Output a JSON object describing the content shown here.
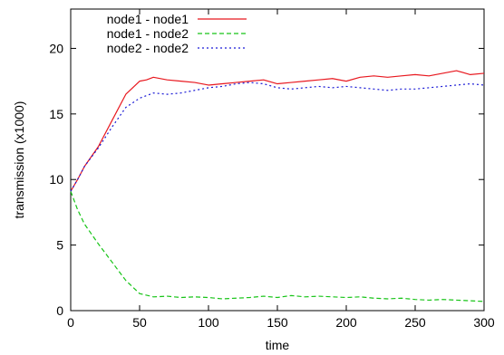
{
  "chart_data": {
    "type": "line",
    "title": "",
    "xlabel": "time",
    "ylabel": "transmission (x1000)",
    "xlim": [
      0,
      300
    ],
    "ylim": [
      0,
      23
    ],
    "x_ticks": [
      "0",
      "50",
      "100",
      "150",
      "200",
      "250",
      "300"
    ],
    "y_ticks": [
      "0",
      "5",
      "10",
      "15",
      "20"
    ],
    "grid": false,
    "legend_position": "top-left",
    "series": [
      {
        "name": "node1 - node1",
        "color": "#e8181f",
        "style": "solid",
        "x": [
          0,
          5,
          10,
          20,
          30,
          40,
          50,
          55,
          60,
          70,
          80,
          90,
          100,
          110,
          120,
          130,
          140,
          150,
          160,
          170,
          180,
          190,
          200,
          210,
          220,
          230,
          240,
          250,
          260,
          270,
          280,
          290,
          300
        ],
        "y": [
          9.1,
          10.0,
          11.0,
          12.5,
          14.5,
          16.5,
          17.5,
          17.6,
          17.8,
          17.6,
          17.5,
          17.4,
          17.2,
          17.3,
          17.4,
          17.5,
          17.6,
          17.3,
          17.4,
          17.5,
          17.6,
          17.7,
          17.5,
          17.8,
          17.9,
          17.8,
          17.9,
          18.0,
          17.9,
          18.1,
          18.3,
          18.0,
          18.1
        ]
      },
      {
        "name": "node1 - node2",
        "color": "#17c417",
        "style": "dashed",
        "x": [
          0,
          5,
          10,
          20,
          30,
          40,
          50,
          60,
          70,
          80,
          90,
          100,
          110,
          120,
          130,
          140,
          150,
          160,
          170,
          180,
          190,
          200,
          210,
          220,
          230,
          240,
          250,
          260,
          270,
          280,
          290,
          300
        ],
        "y": [
          9.1,
          7.7,
          6.6,
          5.1,
          3.7,
          2.3,
          1.3,
          1.05,
          1.1,
          1.0,
          1.05,
          1.0,
          0.9,
          0.95,
          1.0,
          1.1,
          1.0,
          1.15,
          1.05,
          1.1,
          1.05,
          1.0,
          1.05,
          0.95,
          0.9,
          0.95,
          0.85,
          0.8,
          0.85,
          0.8,
          0.75,
          0.7
        ]
      },
      {
        "name": "node2 - node2",
        "color": "#1a1ad6",
        "style": "dotted",
        "x": [
          0,
          5,
          10,
          20,
          30,
          40,
          50,
          55,
          60,
          70,
          80,
          90,
          100,
          110,
          120,
          130,
          140,
          150,
          160,
          170,
          180,
          190,
          200,
          210,
          220,
          230,
          240,
          250,
          260,
          270,
          280,
          290,
          300
        ],
        "y": [
          9.1,
          10.0,
          11.0,
          12.4,
          14.0,
          15.5,
          16.2,
          16.4,
          16.6,
          16.5,
          16.6,
          16.8,
          17.0,
          17.1,
          17.3,
          17.4,
          17.3,
          17.0,
          16.9,
          17.0,
          17.1,
          17.0,
          17.1,
          17.0,
          16.9,
          16.8,
          16.9,
          16.9,
          17.0,
          17.1,
          17.2,
          17.3,
          17.2
        ]
      }
    ]
  }
}
